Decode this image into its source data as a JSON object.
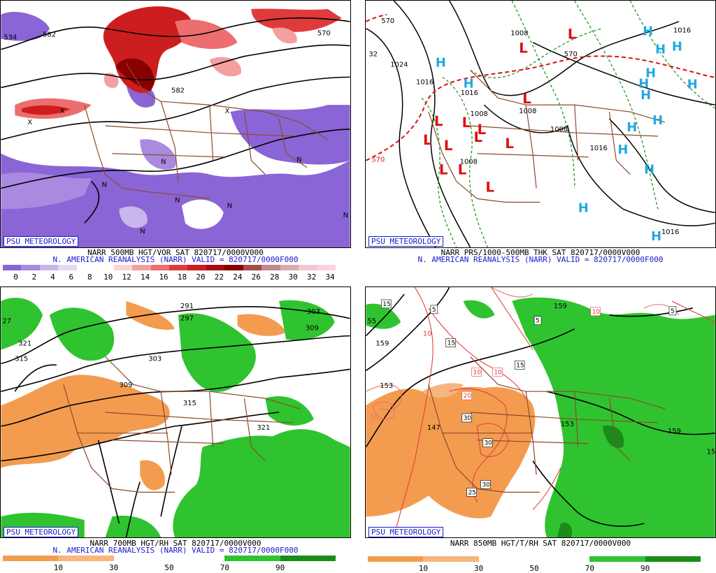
{
  "watermark": "PSU METEOROLOGY",
  "panels": {
    "p1": {
      "line1": "NARR 500MB HGT/VOR SAT 820717/0000V000",
      "line2": "N. AMERICAN REANALYSIS (NARR) VALID = 820717/0000F000",
      "contour_labels": [
        "534",
        "582",
        "582",
        "570",
        "N",
        "N",
        "N",
        "N",
        "N",
        "N",
        "N",
        "X",
        "X",
        "X"
      ],
      "colorbar_ticks": [
        "0",
        "2",
        "4",
        "6",
        "8",
        "10",
        "12",
        "14",
        "16",
        "18",
        "20",
        "22",
        "24",
        "26",
        "28",
        "30",
        "32",
        "34"
      ],
      "colorbar_colors": [
        "#8a65d6",
        "#a98ae0",
        "#c9b6ea",
        "#e4daf3",
        "#ffffff",
        "#ffffff",
        "#fbd4d4",
        "#f4a0a0",
        "#ec6e6e",
        "#e03b3b",
        "#cc1e1e",
        "#a80d0d",
        "#880000",
        "#a84b4b",
        "#c08a8a",
        "#d6aeae",
        "#f0c8d2",
        "#ffd0e0"
      ]
    },
    "p2": {
      "line1": "NARR PRS/1000-500MB THK SAT 820717/0000V000",
      "line2": "N. AMERICAN REANALYSIS (NARR) VALID = 820717/0000F000",
      "contour_labels": [
        "570",
        "1008",
        "570",
        "1024",
        "1016",
        "1016",
        "1008",
        "1008",
        "1008",
        "1008",
        "1016",
        "1016",
        "1016",
        "32",
        "570"
      ],
      "low_symbol": "L",
      "high_symbol": "H"
    },
    "p3": {
      "line1": "NARR 700MB HGT/RH SAT 820717/0000V000",
      "line2": "N. AMERICAN REANALYSIS (NARR) VALID = 820717/0000F000",
      "contour_labels": [
        "291",
        "297",
        "303",
        "309",
        "321",
        "315",
        "303",
        "309",
        "315",
        "321",
        "27"
      ],
      "colorbar_ticks": [
        "10",
        "30",
        "50",
        "70",
        "90"
      ],
      "colorbar_colors": [
        "#f39c4f",
        "#f6b67d",
        "#ffffff",
        "#ffffff",
        "#2fc32f",
        "#1a8c1a"
      ]
    },
    "p4": {
      "line1": "NARR 850MB HGT/T/RH SAT 820717/0000V000",
      "contour_labels": [
        "15",
        "5",
        "5",
        "10",
        "5",
        "15",
        "15",
        "10",
        "10",
        "20",
        "30",
        "30",
        "30",
        "25",
        "153",
        "159",
        "159",
        "147",
        "153",
        "159",
        "15",
        "10",
        "10",
        "55"
      ],
      "colorbar_ticks": [
        "10",
        "30",
        "50",
        "70",
        "90"
      ],
      "colorbar_colors": [
        "#f39c4f",
        "#f6b67d",
        "#ffffff",
        "#ffffff",
        "#2fc32f",
        "#1a8c1a"
      ]
    }
  }
}
